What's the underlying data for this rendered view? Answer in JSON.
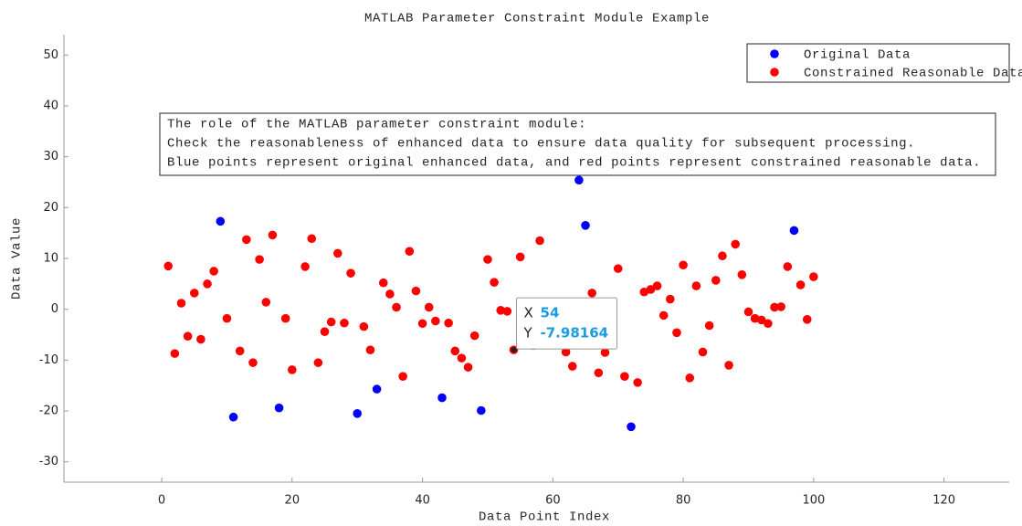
{
  "chart_data": {
    "type": "scatter",
    "title": "MATLAB Parameter Constraint Module Example",
    "xlabel": "Data Point Index",
    "ylabel": "Data Value",
    "xlim": [
      -15,
      130
    ],
    "ylim": [
      -34,
      54
    ],
    "xticks": [
      0,
      20,
      40,
      60,
      80,
      100,
      120
    ],
    "yticks": [
      -30,
      -20,
      -10,
      0,
      10,
      20,
      30,
      40,
      50
    ],
    "legend_location": "northeast",
    "series": [
      {
        "name": "Original Data",
        "color": "#0000ff",
        "x": [
          9,
          11,
          18,
          30,
          33,
          43,
          49,
          64,
          65,
          72,
          97
        ],
        "values": [
          17.3,
          -21.2,
          -19.4,
          -20.5,
          -15.7,
          -17.4,
          -19.9,
          25.4,
          16.5,
          -23.1,
          15.5
        ]
      },
      {
        "name": "Constrained Reasonable Data",
        "color": "#ff0000",
        "x": [
          1,
          2,
          3,
          4,
          5,
          6,
          7,
          8,
          10,
          12,
          13,
          14,
          15,
          16,
          17,
          19,
          20,
          22,
          23,
          24,
          25,
          26,
          27,
          28,
          29,
          31,
          32,
          34,
          35,
          36,
          37,
          38,
          39,
          40,
          41,
          42,
          44,
          45,
          46,
          47,
          48,
          50,
          51,
          52,
          53,
          54,
          55,
          57,
          58,
          62,
          63,
          66,
          67,
          68,
          69,
          70,
          71,
          73,
          74,
          75,
          76,
          77,
          78,
          79,
          80,
          81,
          82,
          83,
          84,
          85,
          86,
          87,
          88,
          89,
          90,
          91,
          92,
          93,
          94,
          95,
          96,
          98,
          99,
          100
        ],
        "values": [
          8.5,
          -8.7,
          1.2,
          -5.3,
          3.2,
          -5.9,
          5.0,
          7.5,
          -1.8,
          -8.2,
          13.7,
          -10.5,
          9.8,
          1.4,
          14.6,
          -1.8,
          -11.9,
          8.4,
          13.9,
          -10.5,
          -4.4,
          -2.5,
          11.0,
          -2.7,
          7.1,
          -3.4,
          -8.0,
          5.2,
          3.0,
          0.4,
          -13.2,
          11.4,
          3.6,
          -2.8,
          0.4,
          -2.3,
          -2.7,
          -8.2,
          -9.6,
          -11.4,
          -5.2,
          9.8,
          5.3,
          -0.2,
          -0.4,
          -7.98164,
          10.3,
          -7.1,
          13.5,
          -8.4,
          -11.2,
          3.2,
          -12.5,
          -8.5,
          -1.6,
          8.0,
          -13.2,
          -14.4,
          3.4,
          3.9,
          4.6,
          -1.2,
          2.0,
          -4.6,
          8.7,
          -13.5,
          4.6,
          -8.4,
          -3.2,
          5.7,
          10.5,
          -11.0,
          12.8,
          6.8,
          -0.5,
          -1.8,
          -2.1,
          -2.8,
          0.4,
          0.5,
          8.4,
          4.8,
          -2.0,
          6.4
        ]
      }
    ],
    "annotation": [
      "The role of the MATLAB parameter constraint module:",
      "Check the reasonableness of enhanced data to ensure data quality for subsequent processing.",
      "Blue points represent original enhanced data, and red points represent constrained reasonable data."
    ],
    "datatip": {
      "x_label": "X",
      "x": 54,
      "y_label": "Y",
      "y": -7.98164
    }
  }
}
